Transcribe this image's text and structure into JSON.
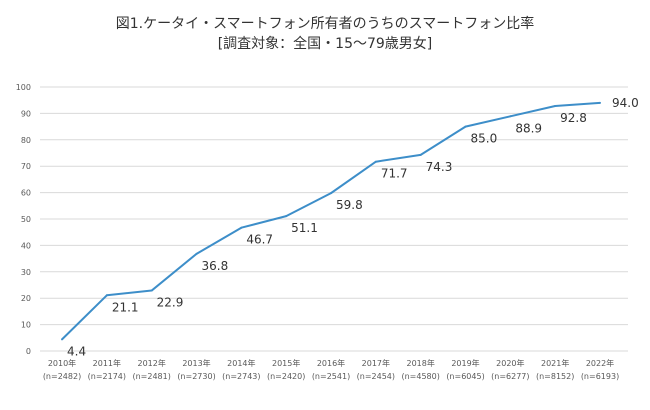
{
  "chart_data": {
    "type": "line",
    "title": "図1.ケータイ・スマートフォン所有者のうちのスマートフォン比率",
    "subtitle": "[調査対象：全国・15〜79歳男女]",
    "categories": [
      "2010年",
      "2011年",
      "2012年",
      "2013年",
      "2014年",
      "2015年",
      "2016年",
      "2017年",
      "2018年",
      "2019年",
      "2020年",
      "2021年",
      "2022年"
    ],
    "category_sublabels": [
      "(n=2482)",
      "(n=2174)",
      "(n=2481)",
      "(n=2730)",
      "(n=2743)",
      "(n=2420)",
      "(n=2541)",
      "(n=2454)",
      "(n=4580)",
      "(n=6045)",
      "(n=6277)",
      "(n=8152)",
      "(n=6193)"
    ],
    "values": [
      4.4,
      21.1,
      22.9,
      36.8,
      46.7,
      51.1,
      59.8,
      71.7,
      74.3,
      85.0,
      88.9,
      92.8,
      94.0
    ],
    "value_labels": [
      "4.4",
      "21.1",
      "22.9",
      "36.8",
      "46.7",
      "51.1",
      "59.8",
      "71.7",
      "74.3",
      "85.0",
      "88.9",
      "92.8",
      "94.0"
    ],
    "y_ticks": [
      "0",
      "10",
      "20",
      "30",
      "40",
      "50",
      "60",
      "70",
      "80",
      "90",
      "100"
    ],
    "ylim": [
      0,
      100
    ],
    "xlabel": "",
    "ylabel": "",
    "grid": true,
    "legend": "none",
    "line_color": "#3d8ec9",
    "grid_color": "#d9d9d9"
  }
}
